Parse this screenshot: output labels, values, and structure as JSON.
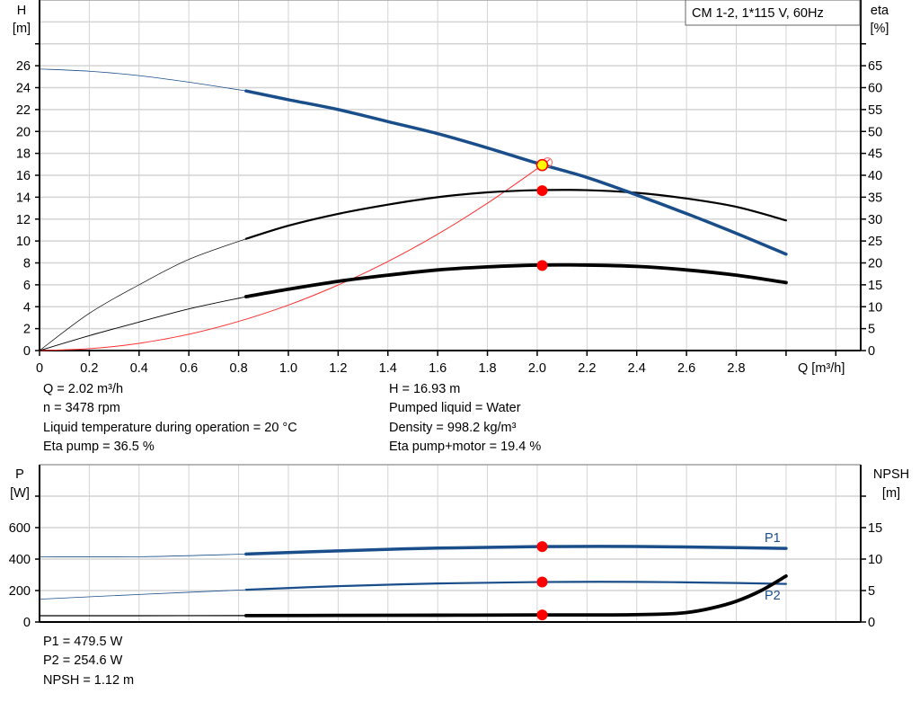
{
  "chart_data": [
    {
      "type": "line",
      "title": "CM 1-2, 1*115 V, 60Hz",
      "xlabel": "Q [m³/h]",
      "ylabel_left": [
        "H",
        "[m]"
      ],
      "ylabel_right": [
        "eta",
        "[%]"
      ],
      "xlim": [
        0,
        3.3
      ],
      "ylim_left": [
        0,
        32
      ],
      "ylim_right": [
        0,
        80
      ],
      "x_ticks": [
        "0",
        "0.2",
        "0.4",
        "0.6",
        "0.8",
        "1.0",
        "1.2",
        "1.4",
        "1.6",
        "1.8",
        "2.0",
        "2.2",
        "2.4",
        "2.6",
        "2.8"
      ],
      "y_ticks_left": [
        "0",
        "2",
        "4",
        "6",
        "8",
        "10",
        "12",
        "14",
        "16",
        "18",
        "20",
        "22",
        "24",
        "26"
      ],
      "y_ticks_right": [
        "0",
        "5",
        "10",
        "15",
        "20",
        "25",
        "30",
        "35",
        "40",
        "45",
        "50",
        "55",
        "60",
        "65"
      ],
      "grid": true,
      "colors": {
        "head": "#1a4e8a",
        "eta": "#000000",
        "system": "#ff3030",
        "point": "#ff0000",
        "duty": "#ffff00"
      },
      "series": [
        {
          "key": "head",
          "axis": "left",
          "color": "#1a4e8a",
          "x": [
            0,
            0.2,
            0.4,
            0.6,
            0.83,
            1.0,
            1.2,
            1.4,
            1.6,
            1.8,
            2.0,
            2.2,
            2.4,
            2.6,
            2.8,
            3.0
          ],
          "y": [
            25.7,
            25.5,
            25.1,
            24.5,
            23.7,
            22.9,
            22.0,
            20.9,
            19.8,
            18.5,
            17.1,
            15.8,
            14.2,
            12.5,
            10.7,
            8.8
          ]
        },
        {
          "key": "eta_pump",
          "axis": "right",
          "color": "#000000",
          "x": [
            0,
            0.2,
            0.4,
            0.6,
            0.83,
            1.0,
            1.2,
            1.4,
            1.6,
            1.8,
            2.0,
            2.2,
            2.4,
            2.6,
            2.8,
            3.0
          ],
          "y": [
            0,
            8.5,
            15,
            20.8,
            25.5,
            28.5,
            31.2,
            33.3,
            35,
            36.1,
            36.6,
            36.6,
            36,
            34.7,
            32.8,
            29.7
          ]
        },
        {
          "key": "eta_total",
          "axis": "right",
          "color": "#000000",
          "x": [
            0,
            0.2,
            0.4,
            0.6,
            0.83,
            1.0,
            1.2,
            1.4,
            1.6,
            1.8,
            2.0,
            2.2,
            2.4,
            2.6,
            2.8,
            3.0
          ],
          "y": [
            0,
            3.4,
            6.5,
            9.5,
            12.3,
            14,
            15.8,
            17.2,
            18.4,
            19.1,
            19.5,
            19.5,
            19.2,
            18.4,
            17.2,
            15.5
          ]
        },
        {
          "key": "system",
          "axis": "left",
          "color": "#ff3030",
          "x": [
            0,
            0.2,
            0.4,
            0.6,
            0.8,
            1.0,
            1.2,
            1.4,
            1.6,
            1.8,
            2.0,
            2.05
          ],
          "y": [
            0,
            0.17,
            0.66,
            1.49,
            2.66,
            4.15,
            5.98,
            8.13,
            10.62,
            13.45,
            16.6,
            17.44
          ]
        }
      ],
      "duty_point": {
        "Q": 2.02,
        "H": 16.93,
        "eta_pump": 36.5,
        "eta_total": 19.4
      }
    },
    {
      "type": "line",
      "xlabel": "",
      "ylabel_left": [
        "P",
        "[W]"
      ],
      "ylabel_right": [
        "NPSH",
        "[m]"
      ],
      "xlim": [
        0,
        3.3
      ],
      "ylim_left": [
        0,
        1000
      ],
      "ylim_right": [
        0,
        25
      ],
      "y_ticks_left": [
        "0",
        "200",
        "400",
        "600"
      ],
      "y_ticks_right": [
        "0",
        "5",
        "10",
        "15"
      ],
      "grid": true,
      "series": [
        {
          "key": "P1",
          "name": "P1",
          "axis": "left",
          "color": "#1a4e8a",
          "x": [
            0,
            0.4,
            0.83,
            1.2,
            1.6,
            2.0,
            2.4,
            2.8,
            3.0
          ],
          "y": [
            415,
            415,
            432,
            452,
            470,
            479,
            480,
            473,
            468
          ]
        },
        {
          "key": "P2",
          "name": "P2",
          "axis": "left",
          "color": "#1a4e8a",
          "x": [
            0,
            0.4,
            0.83,
            1.2,
            1.6,
            2.0,
            2.4,
            2.8,
            3.0
          ],
          "y": [
            145,
            175,
            205,
            228,
            245,
            254,
            255,
            248,
            242
          ]
        },
        {
          "key": "NPSH",
          "axis": "right",
          "color": "#000000",
          "x": [
            0,
            0.4,
            0.83,
            1.2,
            1.6,
            2.0,
            2.3,
            2.5,
            2.6,
            2.7,
            2.8,
            2.9,
            3.0
          ],
          "y": [
            1.0,
            1.0,
            1.02,
            1.05,
            1.08,
            1.12,
            1.13,
            1.25,
            1.5,
            2.2,
            3.3,
            5.0,
            7.3
          ]
        }
      ],
      "duty_point": {
        "Q": 2.02,
        "P1": 479.5,
        "P2": 254.6,
        "NPSH": 1.12
      }
    }
  ],
  "info_top": {
    "left": [
      "Q = 2.02 m³/h",
      "n = 3478 rpm",
      "Liquid temperature during operation = 20 °C",
      "Eta pump = 36.5 %"
    ],
    "right": [
      "H = 16.93 m",
      "Pumped liquid = Water",
      "Density = 998.2 kg/m³",
      "Eta pump+motor = 19.4 %"
    ]
  },
  "info_bottom": [
    "P1 = 479.5 W",
    "P2 = 254.6 W",
    "NPSH = 1.12 m"
  ]
}
